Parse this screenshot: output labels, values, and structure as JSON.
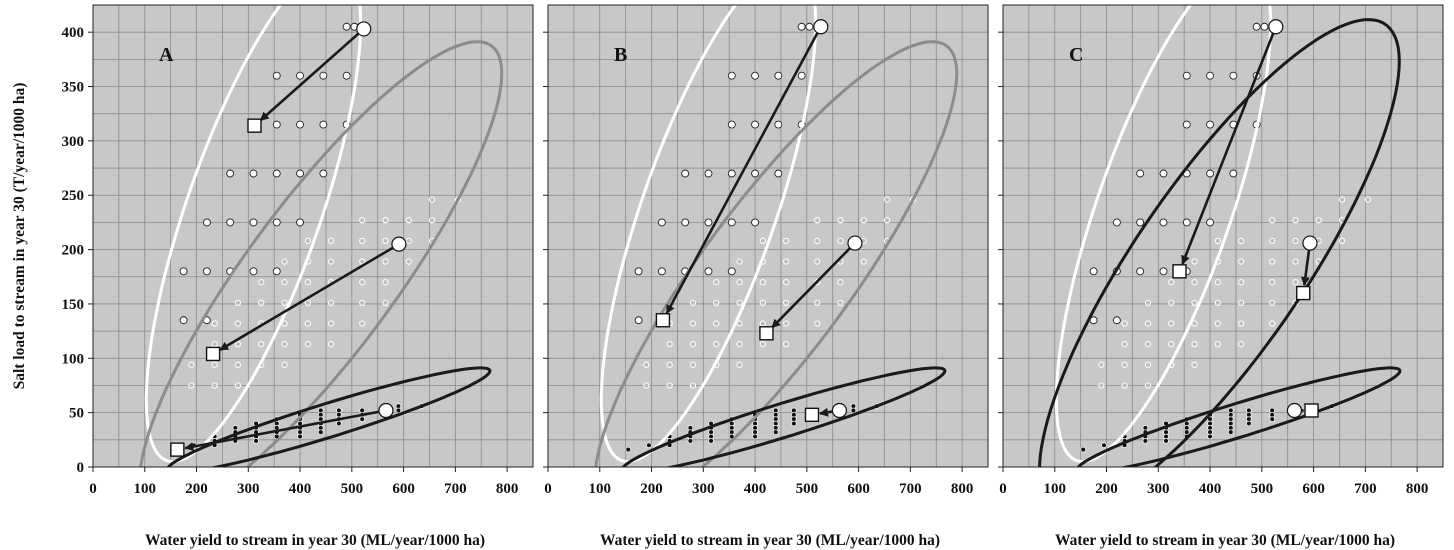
{
  "colors": {
    "plot_bg": "#c8c8c8",
    "grid": "#8a8a8a",
    "white_ellipse": "#ffffff",
    "gray_ellipse": "#8c8c8c",
    "black_ellipse": "#1a1a1a",
    "arrow": "#1a1a1a",
    "gray_point_fill": "#bdbdbd",
    "black_point_fill": "#111111"
  },
  "chart_data": [
    {
      "type": "scatter",
      "panel": "A",
      "xlabel": "Water yield to stream in year 30 (ML/year/1000 ha)",
      "ylabel": "Salt load to stream in year 30  (T/year/1000 ha)",
      "xlim": [
        0,
        850
      ],
      "ylim": [
        0,
        425
      ],
      "xticks": [
        "0",
        "100",
        "200",
        "300",
        "400",
        "500",
        "600",
        "700",
        "800"
      ],
      "yticks": [
        "0",
        "50",
        "100",
        "150",
        "200",
        "250",
        "300",
        "350",
        "400"
      ],
      "grid": true,
      "ellipses": [
        {
          "group": "white",
          "center": [
            310,
            235
          ],
          "semi_axes": [
            290,
            108
          ],
          "angle_deg": 49
        },
        {
          "group": "gray",
          "center": [
            440,
            175
          ],
          "semi_axes": [
            400,
            95
          ],
          "angle_deg": 30
        },
        {
          "group": "black",
          "center": [
            455,
            43
          ],
          "semi_axes": [
            315,
            16
          ],
          "angle_deg": 8.3
        }
      ],
      "arrows": [
        {
          "from": [
            523,
            403
          ],
          "to": [
            312,
            314
          ],
          "marker": "square"
        },
        {
          "from": [
            591,
            205
          ],
          "to": [
            232,
            104
          ],
          "marker": "square"
        },
        {
          "from": [
            566,
            52
          ],
          "to": [
            163,
            16
          ],
          "marker": "square"
        }
      ]
    },
    {
      "type": "scatter",
      "panel": "B",
      "xlabel": "Water yield to stream in year 30 (ML/year/1000 ha)",
      "xlim": [
        0,
        850
      ],
      "ylim": [
        0,
        425
      ],
      "xticks": [
        "0",
        "100",
        "200",
        "300",
        "400",
        "500",
        "600",
        "700",
        "800"
      ],
      "grid": true,
      "ellipses": [
        {
          "group": "white",
          "center": [
            310,
            235
          ],
          "semi_axes": [
            290,
            108
          ],
          "angle_deg": 49
        },
        {
          "group": "gray",
          "center": [
            440,
            175
          ],
          "semi_axes": [
            400,
            95
          ],
          "angle_deg": 30
        },
        {
          "group": "black",
          "center": [
            455,
            43
          ],
          "semi_axes": [
            315,
            16
          ],
          "angle_deg": 8.3
        }
      ],
      "arrows": [
        {
          "from": [
            527,
            405
          ],
          "to": [
            222,
            135
          ],
          "marker": "square"
        },
        {
          "from": [
            593,
            206
          ],
          "to": [
            422,
            123
          ],
          "marker": "square"
        },
        {
          "from": [
            563,
            52
          ],
          "to": [
            510,
            48
          ],
          "marker": "square"
        }
      ]
    },
    {
      "type": "scatter",
      "panel": "C",
      "xlabel": "Water yield to stream in year 30 (ML/year/1000 ha)",
      "xlim": [
        0,
        850
      ],
      "ylim": [
        0,
        425
      ],
      "xticks": [
        "0",
        "100",
        "200",
        "300",
        "400",
        "500",
        "600",
        "700",
        "800"
      ],
      "grid": true,
      "ellipses": [
        {
          "group": "white",
          "center": [
            310,
            235
          ],
          "semi_axes": [
            290,
            108
          ],
          "angle_deg": 49
        },
        {
          "group": "black-large",
          "center": [
            418,
            185
          ],
          "semi_axes": [
            400,
            110
          ],
          "angle_deg": 31
        },
        {
          "group": "black",
          "center": [
            455,
            43
          ],
          "semi_axes": [
            315,
            16
          ],
          "angle_deg": 8.3
        }
      ],
      "arrows": [
        {
          "from": [
            527,
            405
          ],
          "to": [
            341,
            180
          ],
          "marker": "square"
        },
        {
          "from": [
            593,
            206
          ],
          "to": [
            580,
            160
          ],
          "marker": "square"
        },
        {
          "from": [
            563,
            52
          ],
          "to": [
            596,
            52
          ],
          "marker": "square"
        }
      ]
    }
  ],
  "point_sets": {
    "open_circles": {
      "rows": [
        {
          "y": 405,
          "x": [
            490,
            505
          ]
        },
        {
          "y": 360,
          "x": [
            355,
            400,
            445,
            490
          ]
        },
        {
          "y": 315,
          "x": [
            355,
            400,
            445,
            490
          ]
        },
        {
          "y": 270,
          "x": [
            265,
            310,
            355,
            400,
            445
          ]
        },
        {
          "y": 225,
          "x": [
            220,
            265,
            310,
            355,
            400
          ]
        },
        {
          "y": 180,
          "x": [
            175,
            220,
            265,
            310,
            355
          ]
        },
        {
          "y": 135,
          "x": [
            175,
            220
          ]
        }
      ]
    },
    "gray_dots": {
      "rows": [
        {
          "y": 246,
          "x": [
            655,
            705
          ]
        },
        {
          "y": 227,
          "x": [
            520,
            565,
            610,
            655
          ]
        },
        {
          "y": 208,
          "x": [
            415,
            460,
            520,
            565,
            610,
            655
          ]
        },
        {
          "y": 189,
          "x": [
            370,
            415,
            460,
            520,
            565,
            610
          ]
        },
        {
          "y": 170,
          "x": [
            325,
            370,
            415,
            460,
            520,
            565
          ]
        },
        {
          "y": 151,
          "x": [
            280,
            325,
            370,
            415,
            460,
            520,
            565
          ]
        },
        {
          "y": 132,
          "x": [
            235,
            280,
            325,
            370,
            415,
            460,
            520
          ]
        },
        {
          "y": 113,
          "x": [
            235,
            280,
            325,
            370,
            415,
            460
          ]
        },
        {
          "y": 94,
          "x": [
            190,
            235,
            280,
            325,
            370
          ]
        },
        {
          "y": 75,
          "x": [
            190,
            235,
            280
          ]
        }
      ]
    },
    "black_dots": {
      "rows": [
        {
          "y": 56,
          "x": [
            590,
            635
          ]
        },
        {
          "y": 52,
          "x": [
            440,
            475,
            520,
            560,
            590
          ]
        },
        {
          "y": 48,
          "x": [
            400,
            440,
            475,
            520
          ]
        },
        {
          "y": 44,
          "x": [
            355,
            400,
            440,
            475,
            520
          ]
        },
        {
          "y": 40,
          "x": [
            315,
            355,
            400,
            440,
            475
          ]
        },
        {
          "y": 36,
          "x": [
            275,
            315,
            355,
            400,
            440
          ]
        },
        {
          "y": 32,
          "x": [
            275,
            315,
            355,
            400,
            440
          ]
        },
        {
          "y": 28,
          "x": [
            235,
            275,
            315,
            355,
            400
          ]
        },
        {
          "y": 24,
          "x": [
            235,
            275,
            315
          ]
        },
        {
          "y": 20,
          "x": [
            195,
            235
          ]
        },
        {
          "y": 16,
          "x": [
            155
          ]
        }
      ]
    }
  }
}
